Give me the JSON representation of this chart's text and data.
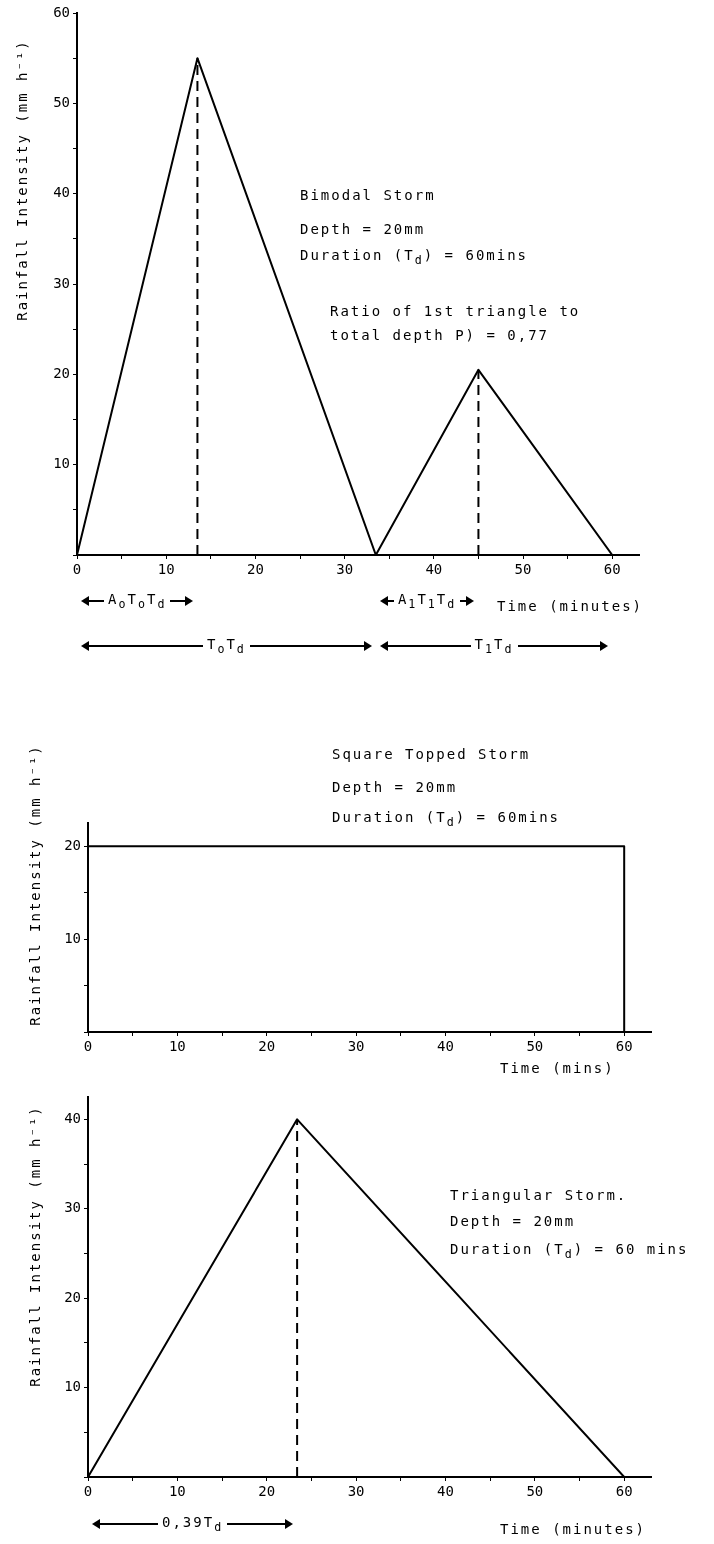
{
  "chart_data": [
    {
      "type": "line",
      "xlabel": "Time (minutes)",
      "ylabel": "Rainfall Intensity (mm h⁻¹)",
      "xlim": [
        0,
        63
      ],
      "ylim": [
        0,
        60
      ],
      "xticks": [
        0,
        {
          "value": 5,
          "label": null
        },
        10,
        {
          "value": 15,
          "label": null
        },
        20,
        {
          "value": 25,
          "label": null
        },
        30,
        {
          "value": 35,
          "label": null
        },
        40,
        {
          "value": 45,
          "label": null
        },
        50,
        {
          "value": 55,
          "label": null
        },
        60
      ],
      "yticks": [
        {
          "value": 0,
          "label": null
        },
        {
          "value": 5,
          "label": null
        },
        10,
        {
          "value": 15,
          "label": null
        },
        20,
        {
          "value": 25,
          "label": null
        },
        30,
        {
          "value": 35,
          "label": null
        },
        40,
        {
          "value": 45,
          "label": null
        },
        50,
        {
          "value": 55,
          "label": null
        },
        60
      ],
      "series": [
        {
          "color": "#000000",
          "x": [
            0,
            13.5,
            33.5,
            45,
            60
          ],
          "values": [
            0,
            55,
            0,
            20.5,
            0
          ]
        },
        {
          "color": "#000000",
          "line_style": "dashed",
          "x": [
            13.5,
            13.5
          ],
          "values": [
            0,
            55
          ]
        },
        {
          "color": "#000000",
          "line_style": "dashed",
          "x": [
            45,
            45
          ],
          "values": [
            0,
            20.5
          ]
        }
      ],
      "annotations": [
        "Bimodal Storm",
        "Depth = 20mm",
        "Duration (T$_{d}$) = 60mins",
        "Ratio of 1st triangle to total depth P) = 0,77",
        "A$_{o}$T$_{o}$T$_{d}$",
        "A$_{1}$T$_{1}$T$_{d}$",
        "T$_{o}$T$_{d}$",
        "T$_{1}$T$_{d}$"
      ]
    },
    {
      "type": "line",
      "xlabel": "Time (mins)",
      "ylabel": "Rainfall Intensity (mm h⁻¹)",
      "xlim": [
        0,
        63
      ],
      "ylim": [
        0,
        22.5
      ],
      "xticks": [
        0,
        {
          "value": 5,
          "label": null
        },
        10,
        {
          "value": 15,
          "label": null
        },
        20,
        {
          "value": 25,
          "label": null
        },
        30,
        {
          "value": 35,
          "label": null
        },
        40,
        {
          "value": 45,
          "label": null
        },
        50,
        {
          "value": 55,
          "label": null
        },
        60
      ],
      "yticks": [
        {
          "value": 0,
          "label": null
        },
        {
          "value": 5,
          "label": null
        },
        10,
        {
          "value": 15,
          "label": null
        },
        20
      ],
      "series": [
        {
          "color": "#000000",
          "x": [
            0,
            0,
            60,
            60
          ],
          "values": [
            0,
            20,
            20,
            0
          ]
        }
      ],
      "annotations": [
        "Square Topped Storm",
        "Depth = 20mm",
        "Duration (T$_{d}$)  = 60mins"
      ]
    },
    {
      "type": "line",
      "xlabel": "Time (minutes)",
      "ylabel": "Rainfall Intensity (mm h⁻¹)",
      "xlim": [
        0,
        63
      ],
      "ylim": [
        0,
        42.5
      ],
      "xticks": [
        0,
        {
          "value": 5,
          "label": null
        },
        10,
        {
          "value": 15,
          "label": null
        },
        20,
        {
          "value": 25,
          "label": null
        },
        30,
        {
          "value": 35,
          "label": null
        },
        40,
        {
          "value": 45,
          "label": null
        },
        50,
        {
          "value": 55,
          "label": null
        },
        60
      ],
      "yticks": [
        {
          "value": 0,
          "label": null
        },
        {
          "value": 5,
          "label": null
        },
        10,
        {
          "value": 15,
          "label": null
        },
        20,
        {
          "value": 25,
          "label": null
        },
        30,
        {
          "value": 35,
          "label": null
        },
        40
      ],
      "series": [
        {
          "color": "#000000",
          "x": [
            0,
            23.4,
            60
          ],
          "values": [
            0,
            40,
            0
          ]
        },
        {
          "color": "#000000",
          "line_style": "dashed",
          "x": [
            23.4,
            23.4
          ],
          "values": [
            0,
            40
          ]
        }
      ],
      "annotations": [
        "Triangular Storm.",
        "Depth = 20mm",
        "Duration (T$_{d}$) = 60 mins",
        "0,39T$_{d}$"
      ]
    }
  ]
}
